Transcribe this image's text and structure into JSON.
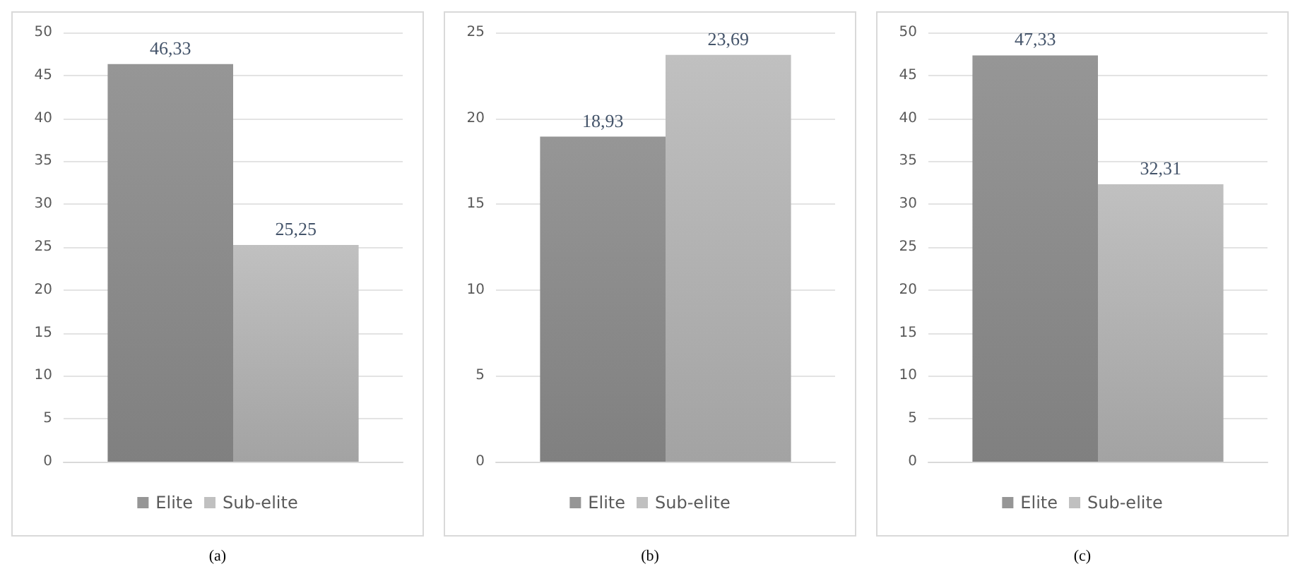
{
  "chart_data": [
    {
      "type": "bar",
      "categories": [
        null
      ],
      "series": [
        {
          "name": "Elite",
          "color": "#969696",
          "values": [
            46.33
          ],
          "value_labels": [
            "46,33"
          ]
        },
        {
          "name": "Sub-elite",
          "color": "#c0c0c0",
          "values": [
            25.25
          ],
          "value_labels": [
            "25,25"
          ]
        }
      ],
      "ylim": [
        0,
        50
      ],
      "yticks": [
        0,
        5,
        10,
        15,
        20,
        25,
        30,
        35,
        40,
        45,
        50
      ],
      "grid": "y",
      "legend": "bottom",
      "annotations": [
        "(a)"
      ]
    },
    {
      "type": "bar",
      "categories": [
        null
      ],
      "series": [
        {
          "name": "Elite",
          "color": "#969696",
          "values": [
            18.93
          ],
          "value_labels": [
            "18,93"
          ]
        },
        {
          "name": "Sub-elite",
          "color": "#c0c0c0",
          "values": [
            23.69
          ],
          "value_labels": [
            "23,69"
          ]
        }
      ],
      "ylim": [
        0,
        25
      ],
      "yticks": [
        0,
        5,
        10,
        15,
        20,
        25
      ],
      "grid": "y",
      "legend": "bottom",
      "annotations": [
        "(b)"
      ]
    },
    {
      "type": "bar",
      "categories": [
        null
      ],
      "series": [
        {
          "name": "Elite",
          "color": "#969696",
          "values": [
            47.33
          ],
          "value_labels": [
            "47,33"
          ]
        },
        {
          "name": "Sub-elite",
          "color": "#c0c0c0",
          "values": [
            32.31
          ],
          "value_labels": [
            "32,31"
          ]
        }
      ],
      "ylim": [
        0,
        50
      ],
      "yticks": [
        0,
        5,
        10,
        15,
        20,
        25,
        30,
        35,
        40,
        45,
        50
      ],
      "grid": "y",
      "legend": "bottom",
      "annotations": [
        "(c)"
      ]
    }
  ]
}
